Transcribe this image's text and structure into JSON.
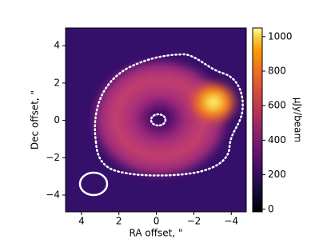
{
  "chart_data": {
    "type": "image",
    "xlabel": "RA offset, \"",
    "ylabel": "Dec offset, \"",
    "xlim": [
      4.85,
      -4.8
    ],
    "ylim": [
      -4.9,
      4.95
    ],
    "xticks": [
      4,
      2,
      0,
      {
        "value": -2,
        "label": "−2"
      },
      {
        "value": -4,
        "label": "−4"
      }
    ],
    "yticks": [
      {
        "value": -4,
        "label": "−4"
      },
      {
        "value": -2,
        "label": "−2"
      },
      0,
      2,
      4
    ],
    "colormap": "inferno",
    "clim": [
      -15,
      1050
    ],
    "colorbar_ticks": [
      0,
      200,
      400,
      600,
      800,
      1000
    ],
    "colorbar_label": "μJy/beam"
  }
}
